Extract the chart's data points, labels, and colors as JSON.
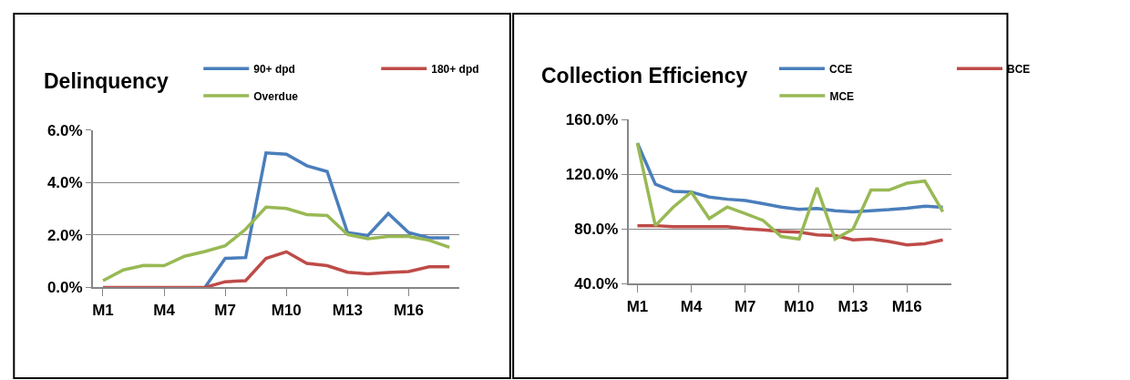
{
  "chart_data": [
    {
      "type": "line",
      "title": "Delinquency",
      "categories": [
        "M1",
        null,
        null,
        "M4",
        null,
        null,
        "M7",
        null,
        null,
        "M10",
        null,
        null,
        "M13",
        null,
        null,
        "M16",
        null,
        null
      ],
      "series": [
        {
          "name": "90+ dpd",
          "color": "#4a7ebb",
          "values": [
            null,
            null,
            null,
            null,
            null,
            0,
            1.11,
            1.14,
            5.13,
            5.08,
            4.64,
            4.42,
            2.09,
            1.98,
            2.82,
            2.09,
            1.89,
            1.89
          ]
        },
        {
          "name": "180+ dpd",
          "color": "#be4b48",
          "values": [
            0,
            0,
            0,
            0,
            0,
            0,
            0.22,
            0.26,
            1.11,
            1.36,
            0.92,
            0.83,
            0.58,
            0.52,
            0.57,
            0.61,
            0.79,
            0.79
          ]
        },
        {
          "name": "Overdue",
          "color": "#98b954",
          "values": [
            0.26,
            0.67,
            0.84,
            0.83,
            1.19,
            1.37,
            1.59,
            2.22,
            3.06,
            3.01,
            2.78,
            2.74,
            2.02,
            1.86,
            1.94,
            1.94,
            1.8,
            1.53
          ]
        }
      ],
      "ylim": [
        0,
        6
      ],
      "yticks": [
        {
          "value": 0,
          "label": "0.0%"
        },
        {
          "value": 2,
          "label": "2.0%"
        },
        {
          "value": 4,
          "label": "4.0%"
        },
        {
          "value": 6,
          "label": "6.0%"
        }
      ],
      "grid": "y",
      "legend": "top right",
      "marker": "none",
      "line_style": "solid"
    },
    {
      "type": "line",
      "title": "Collection Efficiency",
      "categories": [
        "M1",
        null,
        null,
        "M4",
        null,
        null,
        "M7",
        null,
        null,
        "M10",
        null,
        null,
        "M13",
        null,
        null,
        "M16",
        null,
        null
      ],
      "series": [
        {
          "name": "CCE",
          "color": "#4a7ebb",
          "values": [
            142.8,
            112.8,
            107.6,
            107,
            103.4,
            101.8,
            100.9,
            98.6,
            96.1,
            94.4,
            95.1,
            93.4,
            92.6,
            93.4,
            94.2,
            95.3,
            96.7,
            95.9
          ]
        },
        {
          "name": "BCE",
          "color": "#be4b48",
          "values": [
            82.5,
            82.5,
            81.7,
            81.7,
            81.7,
            81.7,
            80.2,
            79.4,
            78.3,
            77.7,
            75.8,
            75.2,
            72.1,
            72.7,
            71,
            68.5,
            69.3,
            72.1
          ]
        },
        {
          "name": "MCE",
          "color": "#98b954",
          "values": [
            142.8,
            82.5,
            96.1,
            107,
            87.7,
            96.1,
            91.3,
            86.3,
            74.6,
            72.7,
            110.1,
            72.7,
            80,
            108.5,
            108.5,
            113.5,
            115.1,
            92.6
          ]
        }
      ],
      "ylim": [
        40,
        160
      ],
      "yticks": [
        {
          "value": 40,
          "label": "40.0%"
        },
        {
          "value": 80,
          "label": "80.0%"
        },
        {
          "value": 120,
          "label": "120.0%"
        },
        {
          "value": 160,
          "label": "160.0%"
        }
      ],
      "grid": "y",
      "legend": "top right",
      "marker": "none",
      "line_style": "solid"
    }
  ]
}
